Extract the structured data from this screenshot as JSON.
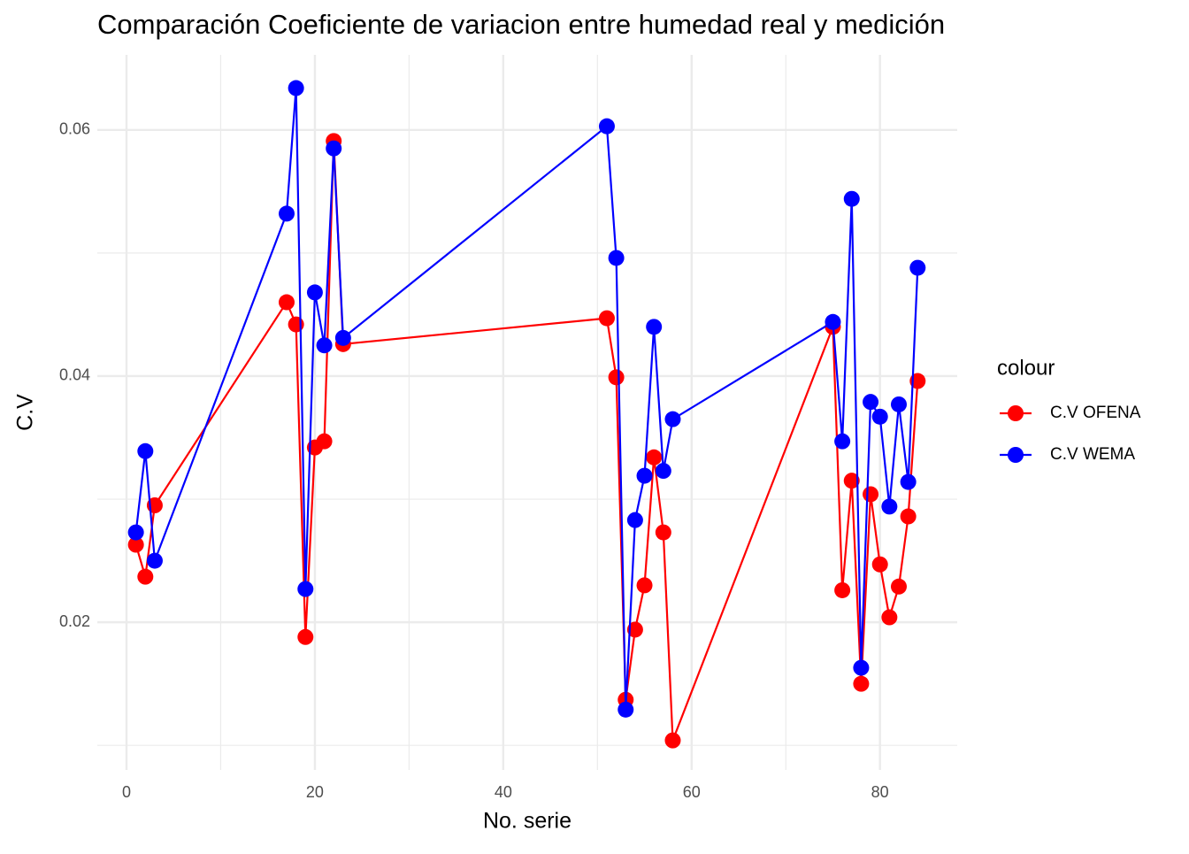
{
  "chart_data": {
    "type": "line",
    "title": "Comparación Coeficiente de variacion entre  humedad real y medición",
    "x_label": "No. serie",
    "y_label": "C.V",
    "x": [
      1,
      2,
      3,
      17,
      18,
      19,
      20,
      21,
      22,
      23,
      51,
      52,
      53,
      54,
      55,
      56,
      57,
      58,
      75,
      76,
      77,
      78,
      79,
      80,
      81,
      82,
      83,
      84
    ],
    "series": [
      {
        "name": "C.V OFENA",
        "color": "#ff0000",
        "values": [
          0.0263,
          0.0237,
          0.0295,
          0.046,
          0.0442,
          0.0188,
          0.0342,
          0.0347,
          0.0591,
          0.0426,
          0.0447,
          0.0399,
          0.0137,
          0.0194,
          0.023,
          0.0334,
          0.0273,
          0.0104,
          0.044,
          0.0226,
          0.0315,
          0.015,
          0.0304,
          0.0247,
          0.0204,
          0.0229,
          0.0286,
          0.0396
        ]
      },
      {
        "name": "C.V WEMA",
        "color": "#0000ff",
        "values": [
          0.0273,
          0.0339,
          0.025,
          0.0532,
          0.0634,
          0.0227,
          0.0468,
          0.0425,
          0.0585,
          0.0431,
          0.0603,
          0.0496,
          0.0129,
          0.0283,
          0.0319,
          0.044,
          0.0323,
          0.0365,
          0.0444,
          0.0347,
          0.0544,
          0.0163,
          0.0379,
          0.0367,
          0.0294,
          0.0377,
          0.0314,
          0.0488
        ]
      }
    ],
    "xlim": [
      -3.1,
      88.2
    ],
    "ylim": [
      0.008,
      0.0661
    ],
    "xticks": [
      0,
      20,
      40,
      60,
      80
    ],
    "yticks": [
      0.02,
      0.04,
      0.06
    ],
    "xminor": [
      10,
      30,
      50,
      70
    ],
    "yminor": [
      0.01,
      0.03,
      0.05
    ],
    "grid": true,
    "legend_title": "colour",
    "legend_position": "right"
  }
}
